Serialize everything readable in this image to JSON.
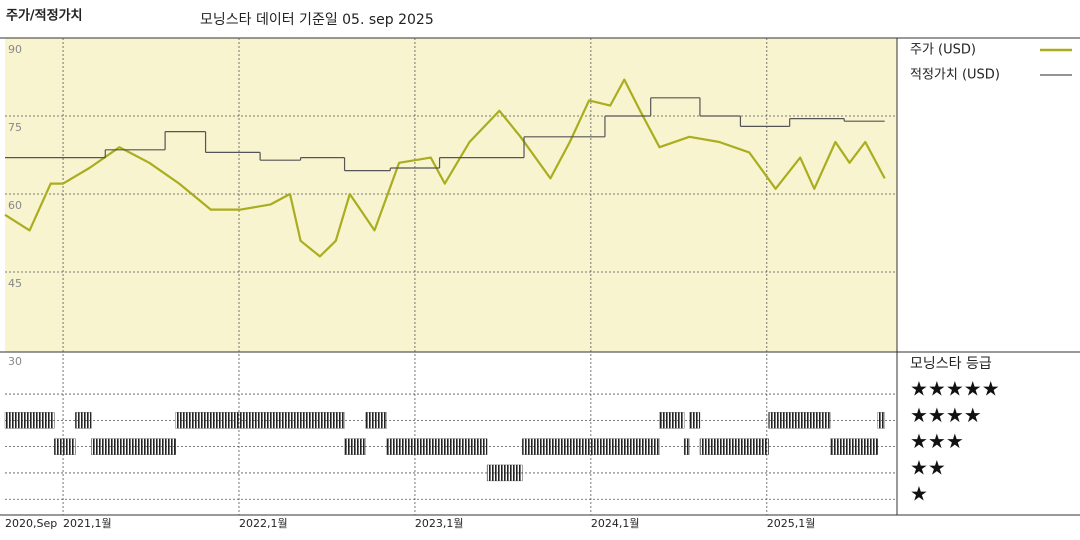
{
  "chart_data": [
    {
      "type": "line",
      "title": "주가/적정가치",
      "subtitle": "모닝스타 데이터 기준일 05. sep 2025",
      "xlim": [
        2020.67,
        2025.74
      ],
      "xticks": [
        {
          "value": 2020.67,
          "label": "2020,Sep"
        },
        {
          "value": 2021,
          "label": "2021,1월"
        },
        {
          "value": 2022,
          "label": "2022,1월"
        },
        {
          "value": 2023,
          "label": "2023,1월"
        },
        {
          "value": 2024,
          "label": "2024,1월"
        },
        {
          "value": 2025,
          "label": "2025,1월"
        }
      ],
      "ylim": [
        30,
        90
      ],
      "yticks": [
        90,
        75,
        60,
        45,
        30
      ],
      "grid": true,
      "series": [
        {
          "name": "주가 (USD)",
          "color": "#a9ad1f",
          "x": [
            2020.67,
            2020.81,
            2020.93,
            2021,
            2021.15,
            2021.32,
            2021.49,
            2021.66,
            2021.84,
            2022.01,
            2022.18,
            2022.29,
            2022.35,
            2022.46,
            2022.55,
            2022.63,
            2022.77,
            2022.91,
            2023.09,
            2023.17,
            2023.31,
            2023.48,
            2023.6,
            2023.77,
            2023.88,
            2023.99,
            2024.11,
            2024.19,
            2024.28,
            2024.39,
            2024.56,
            2024.73,
            2024.9,
            2025.05,
            2025.19,
            2025.27,
            2025.39,
            2025.47,
            2025.56,
            2025.67
          ],
          "values": [
            56,
            53,
            62,
            62,
            65,
            69,
            66,
            62,
            57,
            57,
            58,
            60,
            51,
            48,
            51,
            60,
            53,
            66,
            67,
            62,
            70,
            76,
            71,
            63,
            70,
            78,
            77,
            82,
            76,
            69,
            71,
            70,
            68,
            61,
            67,
            61,
            70,
            66,
            70,
            63
          ]
        },
        {
          "name": "적정가치 (USD)",
          "color": "#555555",
          "step": "post",
          "x": [
            2020.67,
            2021.24,
            2021.58,
            2021.81,
            2022.12,
            2022.35,
            2022.6,
            2022.86,
            2023.14,
            2023.62,
            2024.08,
            2024.34,
            2024.62,
            2024.85,
            2025.13,
            2025.44
          ],
          "values": [
            67,
            68.5,
            72,
            68,
            66.5,
            67,
            64.5,
            65,
            67,
            71,
            75,
            78.5,
            75,
            73,
            74.5,
            74
          ]
        }
      ]
    },
    {
      "type": "rating",
      "title": "모닝스타 등급",
      "xlim": [
        2020.67,
        2025.74
      ],
      "ylim": [
        0.4,
        6.6
      ],
      "yticks": [
        {
          "value": 5,
          "label": "★★★★★"
        },
        {
          "value": 4,
          "label": "★★★★"
        },
        {
          "value": 3,
          "label": "★★★"
        },
        {
          "value": 2,
          "label": "★★"
        },
        {
          "value": 1,
          "label": "★"
        }
      ],
      "color": "#222222",
      "start": [
        2020.67,
        2020.95,
        2021.07,
        2021.16,
        2021.64,
        2022.6,
        2022.72,
        2022.84,
        2023.41,
        2023.61,
        2024.39,
        2024.53,
        2024.56,
        2024.62,
        2025.01,
        2025.36,
        2025.63
      ],
      "end": [
        2020.95,
        2021.07,
        2021.16,
        2021.64,
        2022.6,
        2022.72,
        2022.84,
        2023.41,
        2023.61,
        2024.39,
        2024.53,
        2024.56,
        2024.62,
        2025.01,
        2025.36,
        2025.63,
        2025.67
      ],
      "values": [
        4,
        3,
        4,
        3,
        4,
        3,
        4,
        3,
        2,
        3,
        4,
        3,
        4,
        3,
        4,
        3,
        4
      ]
    }
  ]
}
